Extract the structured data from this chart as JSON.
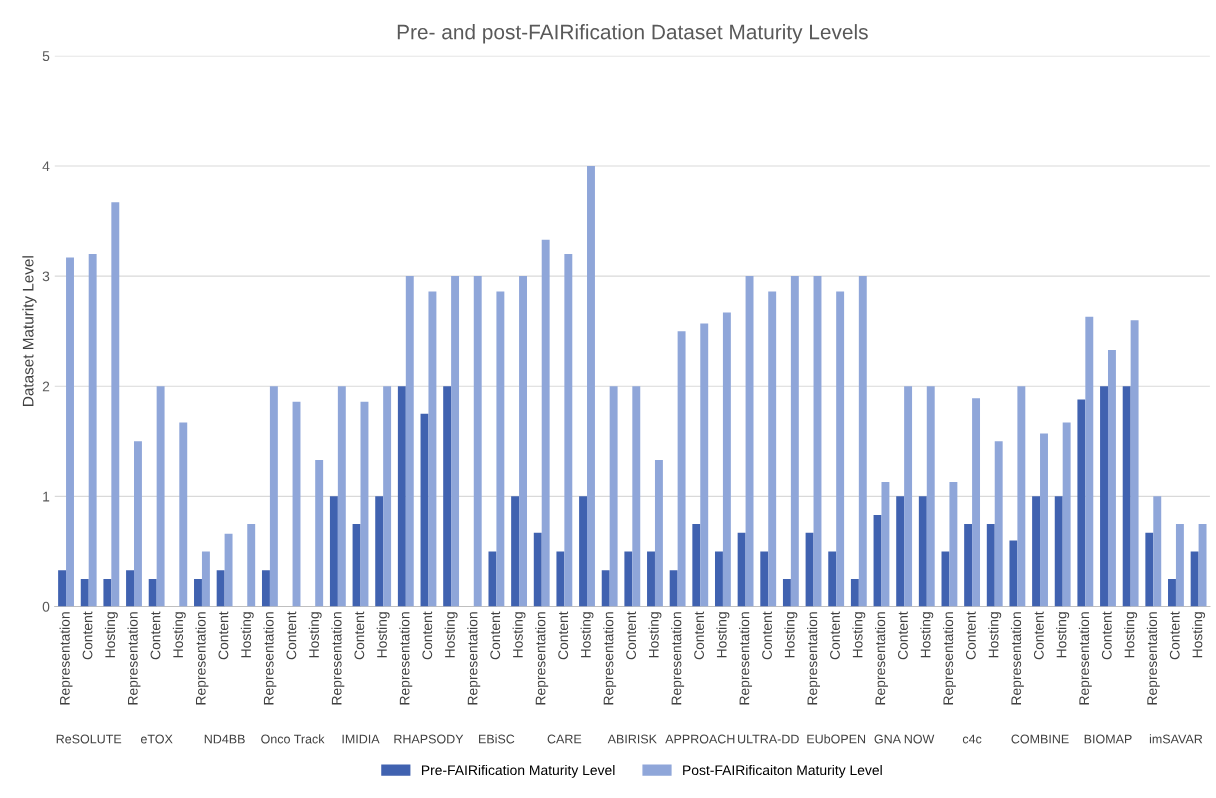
{
  "chart_data": {
    "type": "bar",
    "title": "Pre- and post-FAIRification Dataset Maturity Levels",
    "ylabel": "Dataset Maturity Level",
    "categories": [
      "Representation",
      "Content",
      "Hosting",
      "Representation",
      "Content",
      "Hosting",
      "Representation",
      "Content",
      "Hosting",
      "Representation",
      "Content",
      "Hosting",
      "Representation",
      "Content",
      "Hosting",
      "Representation",
      "Content",
      "Hosting",
      "Representation",
      "Content",
      "Hosting",
      "Representation",
      "Content",
      "Hosting",
      "Representation",
      "Content",
      "Hosting",
      "Representation",
      "Content",
      "Hosting",
      "Representation",
      "Content",
      "Hosting",
      "Representation",
      "Content",
      "Hosting",
      "Representation",
      "Content",
      "Hosting",
      "Representation",
      "Content",
      "Hosting",
      "Representation",
      "Content",
      "Hosting",
      "Representation",
      "Content",
      "Hosting",
      "Representation",
      "Content",
      "Hosting"
    ],
    "annotations": [
      "ReSOLUTE",
      "eTOX",
      "ND4BB",
      "Onco Track",
      "IMIDIA",
      "RHAPSODY",
      "EBiSC",
      "CARE",
      "ABIRISK",
      "APPROACH",
      "ULTRA-DD",
      "EUbOPEN",
      "GNA NOW",
      "c4c",
      "COMBINE",
      "BIOMAP",
      "imSAVAR"
    ],
    "series": [
      {
        "name": "Pre-FAIRification Maturity Level",
        "color": "#4062b0",
        "values": [
          0.33,
          0.25,
          0.25,
          0.33,
          0.25,
          0,
          0.25,
          0.33,
          0,
          0.33,
          0,
          0,
          1,
          0.75,
          1,
          2,
          1.75,
          2,
          0,
          0.5,
          1,
          0.67,
          0.5,
          1,
          0.33,
          0.5,
          0.5,
          0.33,
          0.75,
          0.5,
          0.67,
          0.5,
          0.25,
          0.67,
          0.5,
          0.25,
          0.83,
          1,
          1,
          0.5,
          0.75,
          0.75,
          0.6,
          1,
          1,
          1.88,
          2,
          2,
          0.67,
          0.25,
          0.5
        ]
      },
      {
        "name": "Post-FAIRificaiton Maturity Level",
        "color": "#8fa6d9",
        "values": [
          3.17,
          3.2,
          3.67,
          1.5,
          2,
          1.67,
          0.5,
          0.66,
          0.75,
          2,
          1.86,
          1.33,
          2,
          1.86,
          2,
          3,
          2.86,
          3,
          3,
          2.86,
          3,
          3.33,
          3.2,
          4,
          2,
          2,
          1.33,
          2.5,
          2.57,
          2.67,
          3,
          2.86,
          3,
          3,
          2.86,
          3,
          1.13,
          2,
          2,
          1.13,
          1.89,
          1.5,
          2,
          1.57,
          1.67,
          2.63,
          2.33,
          2.6,
          1,
          0.75,
          0.75
        ]
      }
    ],
    "ylim": [
      0,
      5
    ],
    "yticks": [
      0,
      1,
      2,
      3,
      4,
      5
    ],
    "grid": "y",
    "legend": "bottom"
  }
}
